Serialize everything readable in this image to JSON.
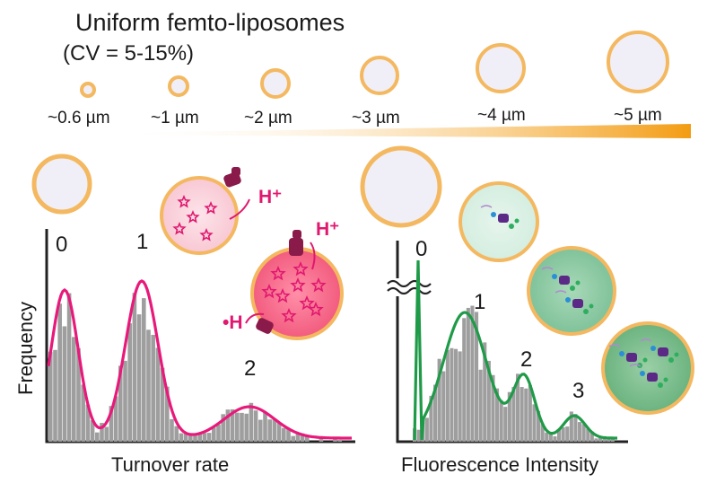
{
  "header": {
    "title": "Uniform femto-liposomes",
    "subtitle": "(CV = 5-15%)"
  },
  "sizes": [
    {
      "label": "~0.6 µm"
    },
    {
      "label": "~1 µm"
    },
    {
      "label": "~2 µm"
    },
    {
      "label": "~3 µm"
    },
    {
      "label": "~4 µm"
    },
    {
      "label": "~5 µm"
    }
  ],
  "left_panel": {
    "ylabel": "Frequency",
    "xlabel": "Turnover rate",
    "peaks": [
      "0",
      "1",
      "2"
    ],
    "proton_label": "H⁺",
    "proton_label_2": "H⁺",
    "proton_label_3": "•H"
  },
  "right_panel": {
    "xlabel": "Fluorescence Intensity",
    "peaks": [
      "0",
      "1",
      "2",
      "3"
    ]
  },
  "colors": {
    "liposome_ring": "#f4b860",
    "liposome_fill": "#f0eef6",
    "gradient_end": "#f39c12",
    "histogram_bar": "#9e9e9e",
    "left_curve": "#e8197a",
    "right_curve": "#1f9a48",
    "enzyme": "#8a1a4a"
  }
}
